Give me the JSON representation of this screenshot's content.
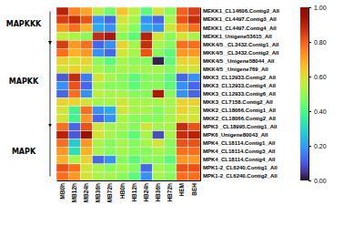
{
  "chart_data": {
    "type": "heatmap",
    "rows": [
      "MEKK1_CL14606.Contig2_All",
      "MEKK1_CL4497.Contig3_All",
      "MEKK1_CL4497.Contig4_All",
      "MEKK1_Unigene53615_All",
      "MKK4/5 _CL3432.Contig1_All",
      "MKK4/5 _CL3432.Contig2_All",
      "MKK4/5 _Unigene58044_All",
      "MKK4/5 _Unigene769_All",
      "MKK3_CL12933.Contig2_All",
      "MKK3_CL12933.Contig4_All",
      "MKK3_CL12933.Contig6_All",
      "MKK3_CL7158.Contig2_All",
      "MKK2_CL18066.Contig1_All",
      "MKK2_CL18066.Contig2_All",
      "MPK3 _CL18995.Contig1_All",
      "MPK6_Unigene80043_All",
      "MPK4_CL18114.Contig1_All",
      "MPK4_CL18114.Contig3_All",
      "MPK4_CL18114.Contig4_All",
      "MPK1-2_CL6240.Contig1_All",
      "MPK1-2_CL6240.Contig2_All"
    ],
    "columns": [
      "MB0h",
      "MB12h",
      "MB24h",
      "MB36h",
      "MB72h",
      "HB0h",
      "HB12h",
      "HB24h",
      "HB36h",
      "HB72h",
      "HEM",
      "BEH"
    ],
    "values": [
      [
        0.9,
        0.75,
        0.7,
        0.55,
        0.45,
        0.65,
        0.55,
        0.42,
        0.58,
        0.48,
        0.8,
        0.85
      ],
      [
        0.85,
        0.88,
        0.82,
        0.18,
        0.12,
        0.58,
        0.52,
        0.18,
        0.12,
        0.52,
        0.82,
        0.88
      ],
      [
        0.72,
        0.78,
        0.68,
        0.22,
        0.18,
        0.55,
        0.48,
        0.22,
        0.18,
        0.58,
        0.72,
        0.78
      ],
      [
        0.55,
        0.52,
        0.48,
        0.88,
        0.92,
        0.48,
        0.42,
        0.9,
        0.58,
        0.48,
        0.58,
        0.52
      ],
      [
        0.85,
        0.72,
        0.78,
        0.12,
        0.18,
        0.62,
        0.52,
        0.88,
        0.52,
        0.48,
        0.78,
        0.78
      ],
      [
        0.78,
        0.68,
        0.72,
        0.18,
        0.12,
        0.58,
        0.52,
        0.82,
        0.48,
        0.42,
        0.72,
        0.72
      ],
      [
        0.62,
        0.58,
        0.62,
        0.48,
        0.42,
        0.52,
        0.48,
        0.48,
        0.02,
        0.42,
        0.62,
        0.62
      ],
      [
        0.58,
        0.62,
        0.58,
        0.52,
        0.48,
        0.52,
        0.52,
        0.52,
        0.52,
        0.48,
        0.58,
        0.58
      ],
      [
        0.1,
        0.88,
        0.15,
        0.58,
        0.52,
        0.48,
        0.42,
        0.48,
        0.48,
        0.42,
        0.12,
        0.18
      ],
      [
        0.18,
        0.82,
        0.12,
        0.52,
        0.48,
        0.48,
        0.42,
        0.48,
        0.48,
        0.42,
        0.18,
        0.12
      ],
      [
        0.12,
        0.78,
        0.18,
        0.55,
        0.52,
        0.52,
        0.48,
        0.48,
        0.92,
        0.48,
        0.18,
        0.12
      ],
      [
        0.62,
        0.62,
        0.58,
        0.52,
        0.52,
        0.58,
        0.52,
        0.52,
        0.52,
        0.52,
        0.62,
        0.62
      ],
      [
        0.58,
        0.38,
        0.78,
        0.18,
        0.22,
        0.58,
        0.52,
        0.52,
        0.48,
        0.52,
        0.62,
        0.58
      ],
      [
        0.58,
        0.38,
        0.72,
        0.12,
        0.18,
        0.52,
        0.48,
        0.48,
        0.48,
        0.52,
        0.58,
        0.58
      ],
      [
        0.78,
        0.12,
        0.82,
        0.58,
        0.52,
        0.52,
        0.48,
        0.58,
        0.52,
        0.52,
        0.88,
        0.82
      ],
      [
        0.9,
        0.1,
        0.95,
        0.58,
        0.52,
        0.48,
        0.42,
        0.52,
        0.08,
        0.52,
        0.88,
        0.9
      ],
      [
        0.78,
        0.28,
        0.72,
        0.52,
        0.48,
        0.52,
        0.48,
        0.52,
        0.58,
        0.48,
        0.82,
        0.82
      ],
      [
        0.72,
        0.32,
        0.68,
        0.52,
        0.48,
        0.52,
        0.48,
        0.48,
        0.52,
        0.48,
        0.78,
        0.78
      ],
      [
        0.68,
        0.52,
        0.62,
        0.12,
        0.18,
        0.48,
        0.42,
        0.48,
        0.48,
        0.42,
        0.72,
        0.72
      ],
      [
        0.82,
        0.78,
        0.58,
        0.52,
        0.48,
        0.52,
        0.48,
        0.12,
        0.52,
        0.48,
        0.82,
        0.82
      ],
      [
        0.78,
        0.72,
        0.58,
        0.52,
        0.52,
        0.48,
        0.42,
        0.18,
        0.52,
        0.48,
        0.78,
        0.78
      ]
    ],
    "colorbar_range": [
      0.0,
      1.0
    ],
    "colorbar_ticks": [
      {
        "value": 0.0,
        "label": "0.00"
      },
      {
        "value": 0.2,
        "label": "0.20"
      },
      {
        "value": 0.4,
        "label": "0.40"
      },
      {
        "value": 0.6,
        "label": "0.60"
      },
      {
        "value": 0.8,
        "label": "0.80"
      },
      {
        "value": 1.0,
        "label": "1.00"
      }
    ],
    "groups": [
      {
        "label": "MAPKKK",
        "rows": [
          0,
          3
        ]
      },
      {
        "label": "MAPKK",
        "rows": [
          4,
          13
        ]
      },
      {
        "label": "MAPK",
        "rows": [
          14,
          20
        ]
      }
    ]
  }
}
